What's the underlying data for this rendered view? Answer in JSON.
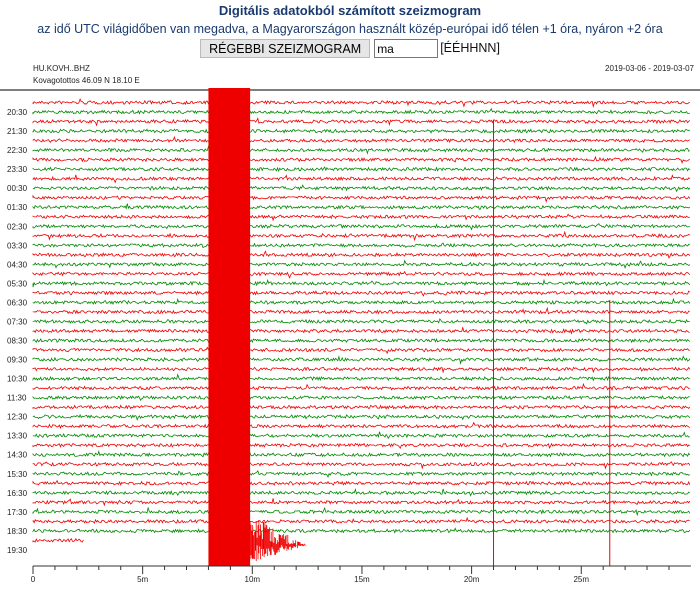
{
  "header": {
    "title": "Digitális adatokból számított szeizmogram",
    "subtitle": "az idő UTC világidőben van megadva, a Magyarországon használt közép-európai idő télen +1 óra, nyáron +2 óra"
  },
  "form": {
    "button_label": "RÉGEBBI SZEIZMOGRAM",
    "date_value": "ma",
    "format_hint": "[ÉÉHHNN]"
  },
  "station": {
    "channel": "HU.KOVH..BHZ",
    "location": "Kovagotottos  46.09 N 18.10 E",
    "date_range": "2019-03-06 - 2019-03-07"
  },
  "colors": {
    "odd": "#ee0000",
    "even": "#008800"
  },
  "row_labels": [
    "20:30",
    "21:30",
    "22:30",
    "23:30",
    "00:30",
    "01:30",
    "02:30",
    "03:30",
    "04:30",
    "05:30",
    "06:30",
    "07:30",
    "08:30",
    "09:30",
    "10:30",
    "11:30",
    "12:30",
    "13:30",
    "14:30",
    "15:30",
    "16:30",
    "17:30",
    "18:30",
    "19:30"
  ],
  "x_axis": {
    "ticks": [
      "0",
      "5m",
      "10m",
      "15m",
      "20m",
      "25m"
    ],
    "max_minutes": 30
  },
  "events": {
    "earthquake_start_min": 8,
    "spikes_min": [
      21,
      26.3
    ]
  }
}
